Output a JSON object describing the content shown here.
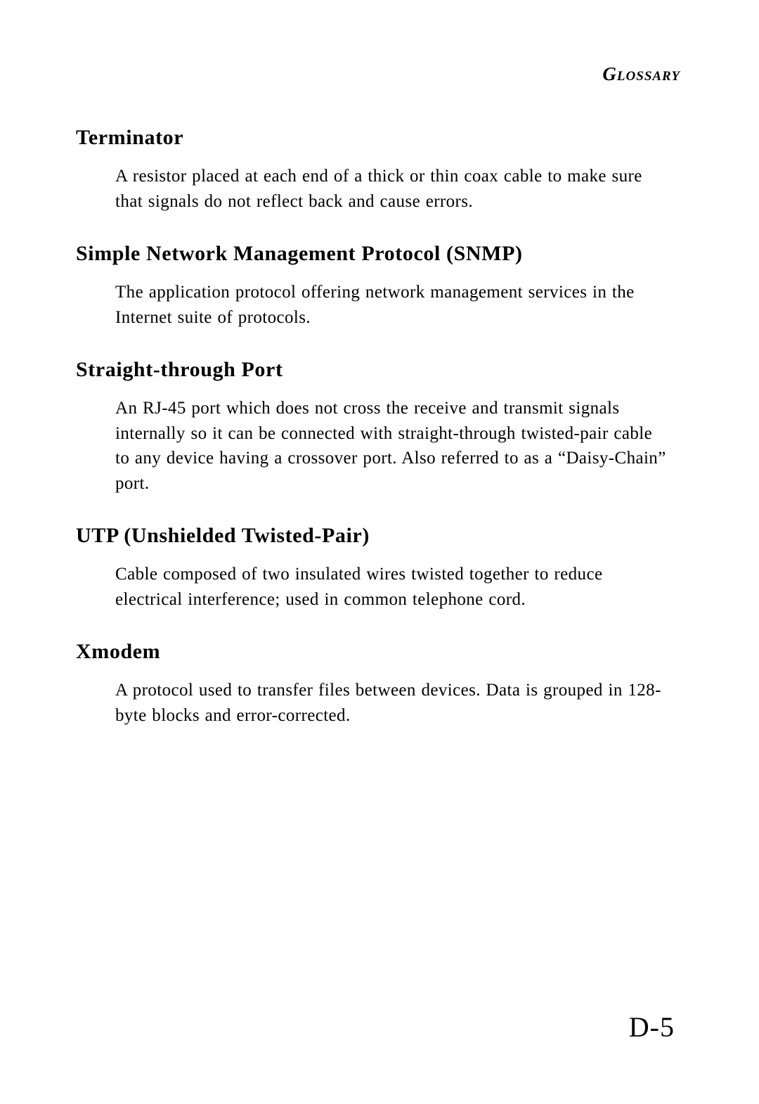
{
  "header": "Glossary",
  "entries": [
    {
      "term": "Terminator",
      "definition": "A resistor placed at each end of a thick or thin coax cable to make sure that signals do not reflect back and cause errors."
    },
    {
      "term": "Simple Network Management Protocol (SNMP)",
      "definition": "The application protocol offering network management services in the Internet suite of protocols."
    },
    {
      "term": "Straight-through Port",
      "definition": "An RJ-45 port which does not cross the receive and transmit signals internally so it can be connected with straight-through twisted-pair cable to any device having a crossover port.  Also referred to as a “Daisy-Chain” port."
    },
    {
      "term": "UTP (Unshielded Twisted-Pair)",
      "definition": "Cable composed of two insulated wires twisted together to reduce electrical interference; used in common telephone cord."
    },
    {
      "term": "Xmodem",
      "definition": "A protocol used to transfer files between devices.  Data is grouped in 128-byte blocks and error-corrected."
    }
  ],
  "pageNumber": "D-5"
}
